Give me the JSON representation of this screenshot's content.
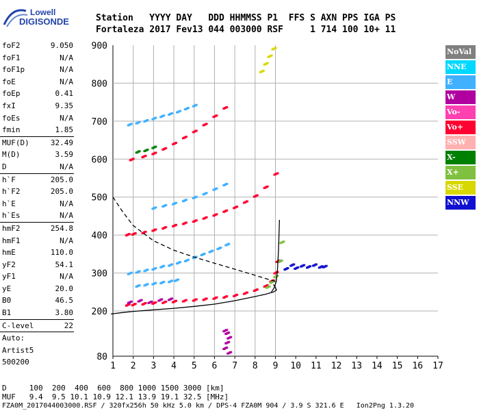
{
  "header": {
    "row1": "Station   YYYY DAY   DDD HHMMSS P1  FFS S AXN PPS IGA PS",
    "row2": "Fortaleza 2017 Fev13 044 003000 RSF     1 714 100 10+ 11"
  },
  "logo": {
    "line1": "Lowell",
    "line2": "DIGISONDE",
    "color": "#2244aa"
  },
  "params": [
    {
      "label": "foF2",
      "value": "9.050"
    },
    {
      "label": "foF1",
      "value": "N/A"
    },
    {
      "label": "foF1p",
      "value": "N/A"
    },
    {
      "label": "foE",
      "value": "N/A"
    },
    {
      "label": "foEp",
      "value": "0.41"
    },
    {
      "label": "fxI",
      "value": "9.35"
    },
    {
      "label": "foEs",
      "value": "N/A"
    },
    {
      "label": "fmin",
      "value": "1.85"
    },
    {
      "sep": true
    },
    {
      "label": "MUF(D)",
      "value": "32.49"
    },
    {
      "label": "M(D)",
      "value": "3.59"
    },
    {
      "label": "D",
      "value": "N/A"
    },
    {
      "sep": true
    },
    {
      "label": "h`F",
      "value": "205.0"
    },
    {
      "label": "h`F2",
      "value": "205.0"
    },
    {
      "label": "h`E",
      "value": "N/A"
    },
    {
      "label": "h`Es",
      "value": "N/A"
    },
    {
      "sep": true
    },
    {
      "label": "hmF2",
      "value": "254.8"
    },
    {
      "label": "hmF1",
      "value": "N/A"
    },
    {
      "label": "hmE",
      "value": "110.0"
    },
    {
      "label": "yF2",
      "value": "54.1"
    },
    {
      "label": "yF1",
      "value": "N/A"
    },
    {
      "label": "yE",
      "value": "20.0"
    },
    {
      "label": "B0",
      "value": "46.5"
    },
    {
      "label": "B1",
      "value": "3.80"
    },
    {
      "sep": true
    },
    {
      "label": "C-level",
      "value": "22"
    },
    {
      "sep": true
    },
    {
      "label": "Auto:",
      "value": ""
    },
    {
      "label": "Artist5",
      "value": ""
    },
    {
      "label": "500200",
      "value": ""
    }
  ],
  "legend": [
    {
      "label": "NoVal",
      "color": "#808080"
    },
    {
      "label": "NNE",
      "color": "#00d8ff"
    },
    {
      "label": "E",
      "color": "#40b0ff"
    },
    {
      "label": "W",
      "color": "#b000a0"
    },
    {
      "label": "Vo-",
      "color": "#ff40b0"
    },
    {
      "label": "Vo+",
      "color": "#ff0030"
    },
    {
      "label": "SSW",
      "color": "#ffb0b0"
    },
    {
      "label": "X-",
      "color": "#008000"
    },
    {
      "label": "X+",
      "color": "#80c040"
    },
    {
      "label": "SSE",
      "color": "#d8d800"
    },
    {
      "label": "NNW",
      "color": "#1010d0"
    }
  ],
  "footer": {
    "line1": "D     100  200  400  600  800 1000 1500 3000 [km]",
    "line2": "MUF   9.4  9.5 10.1 10.9 12.1 13.9 19.1 32.5 [MHz]",
    "line3": "FZA0M_2017044003000.RSF / 320fx256h 50 kHz 5.0 km / DPS-4 FZA0M 904 / 3.9 S 321.6 E   Ion2Png 1.3.20"
  },
  "chart_data": {
    "type": "scatter",
    "xlim": [
      1,
      17
    ],
    "ylim": [
      80,
      900
    ],
    "xticks": [
      1,
      2,
      3,
      4,
      5,
      6,
      7,
      8,
      9,
      10,
      11,
      12,
      13,
      14,
      15,
      16,
      17
    ],
    "yticks": [
      80,
      200,
      300,
      400,
      500,
      600,
      700,
      800,
      900
    ],
    "grid": true,
    "xlabel": "",
    "ylabel": "",
    "series": [
      {
        "color": "#ff0030",
        "points": [
          [
            1.7,
            215
          ],
          [
            2.0,
            216
          ],
          [
            2.5,
            218
          ],
          [
            3.0,
            220
          ],
          [
            3.5,
            222
          ],
          [
            4.0,
            224
          ],
          [
            4.5,
            226
          ],
          [
            5.0,
            228
          ],
          [
            5.5,
            230
          ],
          [
            6.0,
            233
          ],
          [
            6.5,
            236
          ],
          [
            7.0,
            240
          ],
          [
            7.5,
            246
          ],
          [
            8.0,
            254
          ],
          [
            8.5,
            265
          ],
          [
            8.8,
            278
          ],
          [
            9.0,
            300
          ],
          [
            9.1,
            330
          ]
        ]
      },
      {
        "color": "#ff0030",
        "points": [
          [
            1.7,
            400
          ],
          [
            2.0,
            402
          ],
          [
            2.5,
            406
          ],
          [
            3.0,
            412
          ],
          [
            3.5,
            418
          ],
          [
            4.0,
            424
          ],
          [
            4.5,
            430
          ],
          [
            5.0,
            436
          ],
          [
            5.5,
            444
          ],
          [
            6.0,
            452
          ],
          [
            6.5,
            462
          ],
          [
            7.0,
            472
          ],
          [
            7.5,
            486
          ],
          [
            8.0,
            502
          ],
          [
            8.5,
            525
          ],
          [
            9.0,
            560
          ]
        ]
      },
      {
        "color": "#ff0030",
        "points": [
          [
            1.9,
            598
          ],
          [
            2.5,
            606
          ],
          [
            3.0,
            614
          ],
          [
            3.5,
            626
          ],
          [
            4.0,
            640
          ],
          [
            4.5,
            656
          ],
          [
            5.0,
            672
          ],
          [
            5.5,
            690
          ],
          [
            6.0,
            712
          ],
          [
            6.5,
            734
          ]
        ]
      },
      {
        "color": "#40b0ff",
        "points": [
          [
            1.8,
            298
          ],
          [
            2.2,
            302
          ],
          [
            2.6,
            306
          ],
          [
            3.0,
            310
          ],
          [
            3.4,
            316
          ],
          [
            3.8,
            320
          ],
          [
            4.2,
            326
          ],
          [
            4.6,
            332
          ],
          [
            5.0,
            340
          ],
          [
            5.4,
            348
          ],
          [
            5.8,
            356
          ],
          [
            6.2,
            364
          ],
          [
            6.6,
            374
          ]
        ]
      },
      {
        "color": "#40b0ff",
        "points": [
          [
            2.2,
            265
          ],
          [
            2.6,
            268
          ],
          [
            3.0,
            271
          ],
          [
            3.4,
            274
          ],
          [
            3.8,
            277
          ],
          [
            4.1,
            280
          ]
        ]
      },
      {
        "color": "#40b0ff",
        "points": [
          [
            1.8,
            690
          ],
          [
            2.2,
            695
          ],
          [
            2.6,
            700
          ],
          [
            3.0,
            706
          ],
          [
            3.4,
            712
          ],
          [
            3.8,
            718
          ],
          [
            4.2,
            724
          ],
          [
            4.6,
            732
          ],
          [
            5.0,
            740
          ]
        ]
      },
      {
        "color": "#40b0ff",
        "points": [
          [
            3.0,
            470
          ],
          [
            3.5,
            476
          ],
          [
            4.0,
            482
          ],
          [
            4.5,
            490
          ],
          [
            5.0,
            498
          ],
          [
            5.5,
            508
          ],
          [
            6.0,
            520
          ],
          [
            6.5,
            532
          ]
        ]
      },
      {
        "color": "#1010d0",
        "points": [
          [
            9.2,
            330
          ],
          [
            9.5,
            310
          ],
          [
            9.8,
            320
          ],
          [
            10.0,
            312
          ],
          [
            10.3,
            318
          ],
          [
            10.6,
            315
          ],
          [
            10.9,
            320
          ],
          [
            11.2,
            315
          ],
          [
            11.4,
            316
          ]
        ]
      },
      {
        "color": "#b000a0",
        "points": [
          [
            1.8,
            222
          ],
          [
            2.3,
            226
          ],
          [
            2.8,
            222
          ],
          [
            3.3,
            228
          ],
          [
            3.8,
            230
          ]
        ]
      },
      {
        "color": "#80c040",
        "points": [
          [
            8.6,
            262
          ],
          [
            8.8,
            275
          ],
          [
            9.0,
            290
          ],
          [
            9.2,
            330
          ],
          [
            9.3,
            380
          ]
        ]
      },
      {
        "color": "#d8d800",
        "points": [
          [
            8.3,
            830
          ],
          [
            8.5,
            850
          ],
          [
            8.7,
            870
          ],
          [
            8.9,
            890
          ]
        ]
      },
      {
        "color": "#008000",
        "points": [
          [
            2.2,
            618
          ],
          [
            2.6,
            622
          ],
          [
            3.0,
            630
          ]
        ]
      },
      {
        "color": "#b000a0",
        "points": [
          [
            6.5,
            147
          ],
          [
            6.6,
            140
          ],
          [
            6.7,
            128
          ],
          [
            6.6,
            115
          ],
          [
            6.5,
            100
          ],
          [
            6.7,
            88
          ]
        ]
      }
    ],
    "profile": {
      "color": "#000000",
      "points": [
        [
          0.9,
          192
        ],
        [
          1.5,
          196
        ],
        [
          2.0,
          199
        ],
        [
          3.0,
          203
        ],
        [
          4.0,
          207
        ],
        [
          5.0,
          212
        ],
        [
          6.0,
          218
        ],
        [
          7.0,
          227
        ],
        [
          8.0,
          238
        ],
        [
          8.5,
          244
        ],
        [
          8.9,
          250
        ],
        [
          9.05,
          254.8
        ],
        [
          9.0,
          262
        ],
        [
          8.9,
          270
        ]
      ]
    },
    "trace": {
      "color": "#000000",
      "points": [
        [
          8.8,
          250
        ],
        [
          8.95,
          262
        ],
        [
          9.05,
          280
        ],
        [
          9.1,
          310
        ],
        [
          9.15,
          360
        ],
        [
          9.2,
          440
        ]
      ]
    },
    "muf_curve": {
      "color": "#000000",
      "dashed": true,
      "points": [
        [
          1.0,
          500
        ],
        [
          1.5,
          460
        ],
        [
          2.0,
          425
        ],
        [
          3.0,
          385
        ],
        [
          4.0,
          360
        ],
        [
          5.0,
          342
        ],
        [
          6.0,
          326
        ],
        [
          7.0,
          310
        ],
        [
          8.0,
          294
        ],
        [
          8.6,
          284
        ],
        [
          9.0,
          278
        ]
      ]
    }
  }
}
